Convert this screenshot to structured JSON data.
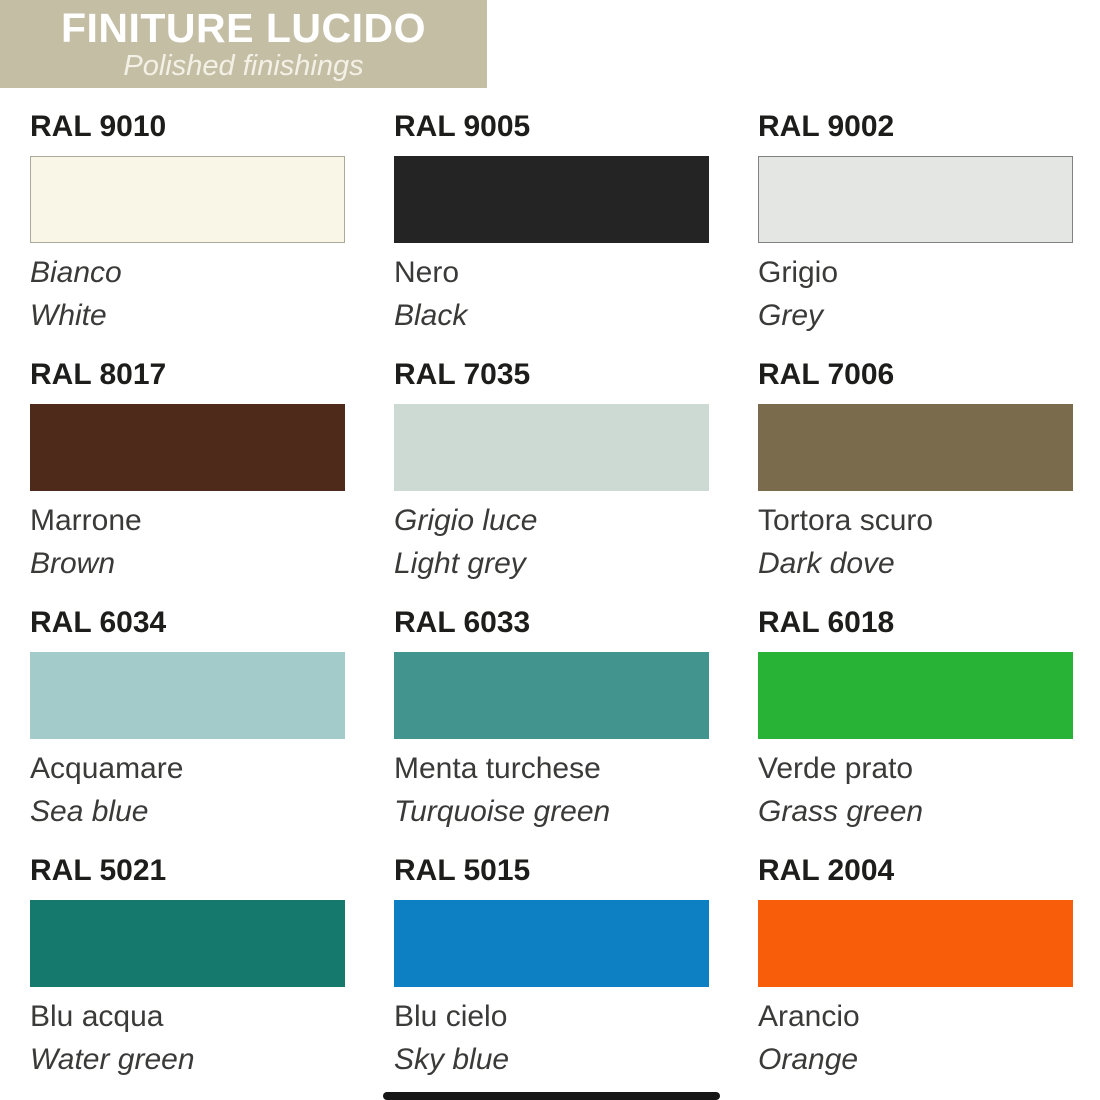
{
  "header": {
    "title": "FINITURE LUCIDO",
    "subtitle": "Polished finishings",
    "banner_color": "#c4bea5"
  },
  "palette": {
    "swatches": [
      {
        "code": "RAL 9010",
        "name_it": "Bianco",
        "name_en": "White",
        "color": "#f9f6e8",
        "border": "#a9aa9c"
      },
      {
        "code": "RAL 9005",
        "name_it": "Nero",
        "name_en": "Black",
        "color": "#242424"
      },
      {
        "code": "RAL 9002",
        "name_it": "Grigio",
        "name_en": "Grey",
        "color": "#e4e6e4",
        "border": "#818181"
      },
      {
        "code": "RAL 8017",
        "name_it": "Marrone",
        "name_en": "Brown",
        "color": "#4e2a1a"
      },
      {
        "code": "RAL 7035",
        "name_it": "Grigio luce",
        "name_en": "Light grey",
        "color": "#cdd9d3"
      },
      {
        "code": "RAL 7006",
        "name_it": "Tortora scuro",
        "name_en": "Dark dove",
        "color": "#7a6b4c"
      },
      {
        "code": "RAL 6034",
        "name_it": "Acquamare",
        "name_en": "Sea blue",
        "color": "#a2cbc9"
      },
      {
        "code": "RAL 6033",
        "name_it": "Menta turchese",
        "name_en": "Turquoise green",
        "color": "#42948e"
      },
      {
        "code": "RAL 6018",
        "name_it": "Verde prato",
        "name_en": "Grass green",
        "color": "#28b236"
      },
      {
        "code": "RAL 5021",
        "name_it": "Blu acqua",
        "name_en": "Water green",
        "color": "#15796e"
      },
      {
        "code": "RAL 5015",
        "name_it": "Blu cielo",
        "name_en": "Sky blue",
        "color": "#0c80c3"
      },
      {
        "code": "RAL 2004",
        "name_it": "Arancio",
        "name_en": "Orange",
        "color": "#f85d0a"
      }
    ]
  }
}
